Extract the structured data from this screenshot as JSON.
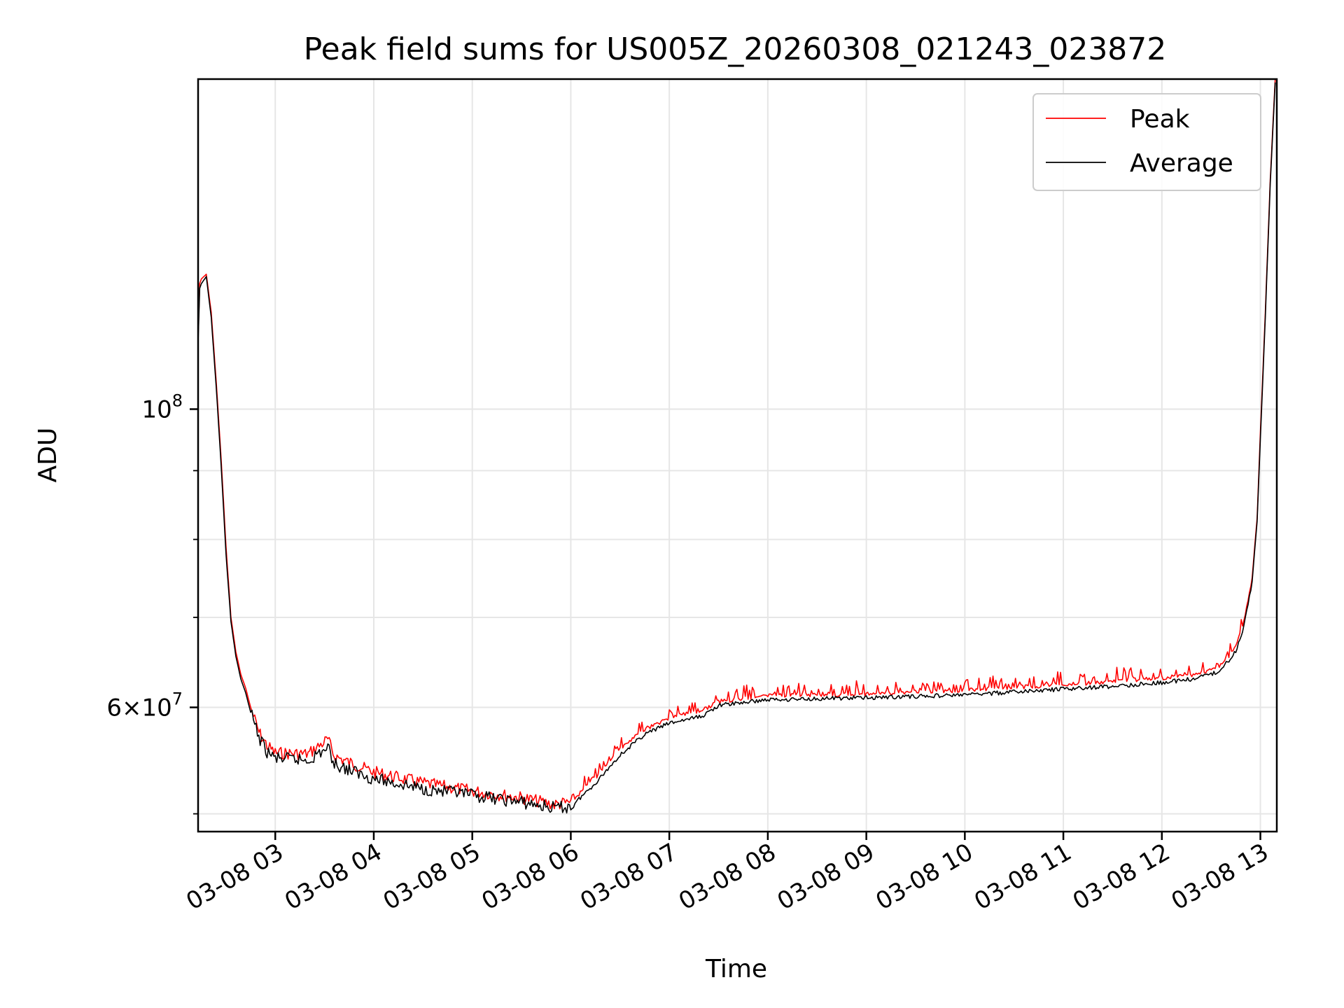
{
  "chart_data": {
    "type": "line",
    "title": "Peak field sums for US005Z_20260308_021243_023872",
    "xlabel": "Time",
    "ylabel": "ADU",
    "x_axis_type": "datetime",
    "y_scale": "log",
    "xlim": [
      "2026-03-08 02:13",
      "2026-03-08 13:10"
    ],
    "ylim": [
      48500000,
      176000000
    ],
    "grid": true,
    "legend_position": "upper right",
    "x_ticks": [
      {
        "t": "2026-03-08 03:00",
        "label": "03-08 03"
      },
      {
        "t": "2026-03-08 04:00",
        "label": "03-08 04"
      },
      {
        "t": "2026-03-08 05:00",
        "label": "03-08 05"
      },
      {
        "t": "2026-03-08 06:00",
        "label": "03-08 06"
      },
      {
        "t": "2026-03-08 07:00",
        "label": "03-08 07"
      },
      {
        "t": "2026-03-08 08:00",
        "label": "03-08 08"
      },
      {
        "t": "2026-03-08 09:00",
        "label": "03-08 09"
      },
      {
        "t": "2026-03-08 10:00",
        "label": "03-08 10"
      },
      {
        "t": "2026-03-08 11:00",
        "label": "03-08 11"
      },
      {
        "t": "2026-03-08 12:00",
        "label": "03-08 12"
      },
      {
        "t": "2026-03-08 13:00",
        "label": "03-08 13"
      }
    ],
    "y_major_ticks": [
      {
        "value": 60000000,
        "base": "6",
        "times": "×",
        "mantissa": "10",
        "exp": "7"
      },
      {
        "value": 100000000,
        "base": "",
        "times": "",
        "mantissa": "10",
        "exp": "8"
      }
    ],
    "y_minor_ticks": [
      50000000,
      70000000,
      80000000,
      90000000
    ],
    "colors": {
      "peak": "#ff0000",
      "average": "#000000"
    },
    "series": [
      {
        "name": "Peak",
        "key": "peak",
        "x": [
          "2026-03-08 02:13",
          "2026-03-08 02:14",
          "2026-03-08 02:15",
          "2026-03-08 02:18",
          "2026-03-08 02:21",
          "2026-03-08 02:24",
          "2026-03-08 02:27",
          "2026-03-08 02:30",
          "2026-03-08 02:33",
          "2026-03-08 02:36",
          "2026-03-08 02:39",
          "2026-03-08 02:42",
          "2026-03-08 02:45",
          "2026-03-08 02:50",
          "2026-03-08 02:55",
          "2026-03-08 03:00",
          "2026-03-08 03:20",
          "2026-03-08 03:32",
          "2026-03-08 03:36",
          "2026-03-08 03:45",
          "2026-03-08 04:00",
          "2026-03-08 04:30",
          "2026-03-08 05:00",
          "2026-03-08 05:30",
          "2026-03-08 05:50",
          "2026-03-08 06:00",
          "2026-03-08 06:15",
          "2026-03-08 06:30",
          "2026-03-08 06:45",
          "2026-03-08 07:00",
          "2026-03-08 07:20",
          "2026-03-08 07:30",
          "2026-03-08 08:00",
          "2026-03-08 09:00",
          "2026-03-08 10:00",
          "2026-03-08 11:00",
          "2026-03-08 11:30",
          "2026-03-08 12:00",
          "2026-03-08 12:20",
          "2026-03-08 12:35",
          "2026-03-08 12:45",
          "2026-03-08 12:50",
          "2026-03-08 12:55",
          "2026-03-08 12:58",
          "2026-03-08 13:00",
          "2026-03-08 13:03",
          "2026-03-08 13:06",
          "2026-03-08 13:09"
        ],
        "values": [
          113000000,
          124000000,
          125000000,
          126000000,
          118000000,
          105000000,
          92000000,
          79000000,
          70000000,
          66000000,
          63500000,
          62000000,
          60000000,
          57500000,
          56200000,
          55500000,
          55400000,
          56800000,
          55200000,
          54600000,
          53700000,
          52700000,
          52000000,
          51400000,
          50800000,
          51000000,
          53200000,
          55800000,
          57800000,
          58900000,
          59700000,
          60600000,
          61200000,
          61400000,
          61800000,
          62400000,
          62700000,
          63100000,
          63500000,
          64300000,
          66500000,
          69500000,
          75000000,
          83000000,
          96000000,
          118000000,
          148000000,
          176000000
        ]
      },
      {
        "name": "Average",
        "key": "average",
        "x": [
          "2026-03-08 02:13",
          "2026-03-08 02:14",
          "2026-03-08 02:15",
          "2026-03-08 02:18",
          "2026-03-08 02:21",
          "2026-03-08 02:24",
          "2026-03-08 02:27",
          "2026-03-08 02:30",
          "2026-03-08 02:33",
          "2026-03-08 02:36",
          "2026-03-08 02:39",
          "2026-03-08 02:42",
          "2026-03-08 02:45",
          "2026-03-08 02:50",
          "2026-03-08 02:55",
          "2026-03-08 03:00",
          "2026-03-08 03:20",
          "2026-03-08 03:32",
          "2026-03-08 03:36",
          "2026-03-08 03:45",
          "2026-03-08 04:00",
          "2026-03-08 04:30",
          "2026-03-08 05:00",
          "2026-03-08 05:30",
          "2026-03-08 05:50",
          "2026-03-08 06:00",
          "2026-03-08 06:15",
          "2026-03-08 06:30",
          "2026-03-08 06:45",
          "2026-03-08 07:00",
          "2026-03-08 07:20",
          "2026-03-08 07:30",
          "2026-03-08 08:00",
          "2026-03-08 09:00",
          "2026-03-08 10:00",
          "2026-03-08 11:00",
          "2026-03-08 11:30",
          "2026-03-08 12:00",
          "2026-03-08 12:20",
          "2026-03-08 12:35",
          "2026-03-08 12:45",
          "2026-03-08 12:50",
          "2026-03-08 12:55",
          "2026-03-08 12:58",
          "2026-03-08 13:00",
          "2026-03-08 13:03",
          "2026-03-08 13:06",
          "2026-03-08 13:09"
        ],
        "values": [
          112000000,
          123000000,
          124000000,
          125500000,
          117000000,
          104000000,
          91000000,
          78000000,
          69500000,
          65500000,
          63000000,
          61500000,
          59500000,
          57000000,
          55600000,
          55000000,
          54800000,
          56000000,
          54500000,
          53900000,
          53100000,
          52200000,
          51600000,
          51000000,
          50500000,
          50600000,
          52700000,
          55300000,
          57300000,
          58400000,
          59100000,
          60200000,
          60800000,
          61000000,
          61300000,
          61900000,
          62200000,
          62600000,
          63000000,
          63800000,
          66000000,
          69000000,
          74500000,
          82500000,
          95000000,
          117000000,
          147000000,
          175000000
        ]
      }
    ]
  }
}
